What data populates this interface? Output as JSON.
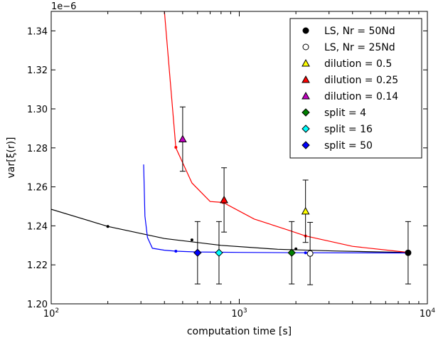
{
  "chart_data": {
    "type": "scatter",
    "title": "",
    "xlabel": "computation time [s]",
    "ylabel": "var[ξ(r)]",
    "y_multiplier": "1e−6",
    "x_scale": "log",
    "xlim": [
      100,
      10000
    ],
    "ylim": [
      1.2,
      1.35
    ],
    "x_ticks": [
      {
        "value": 100,
        "base": "10",
        "exp": "2"
      },
      {
        "value": 1000,
        "base": "10",
        "exp": "3"
      },
      {
        "value": 10000,
        "base": "10",
        "exp": "4"
      }
    ],
    "y_ticks": [
      1.2,
      1.22,
      1.24,
      1.26,
      1.28,
      1.3,
      1.32,
      1.34
    ],
    "legend_position": "top-right",
    "curves": [
      {
        "color": "#000000",
        "x": [
          100,
          200,
          400,
          800,
          1600,
          3200,
          8000
        ],
        "y": [
          1.2485,
          1.2397,
          1.2335,
          1.23,
          1.228,
          1.2271,
          1.2263
        ]
      },
      {
        "color": "#ff0000",
        "x": [
          400,
          460,
          560,
          700,
          820,
          1200,
          1800,
          2250,
          4000,
          8000
        ],
        "y": [
          1.35,
          1.28,
          1.262,
          1.2525,
          1.252,
          1.2435,
          1.238,
          1.2348,
          1.2295,
          1.2263
        ]
      },
      {
        "color": "#0000ff",
        "x": [
          310,
          315,
          325,
          345,
          400,
          460,
          600,
          1000,
          2250,
          8000
        ],
        "y": [
          1.2715,
          1.245,
          1.234,
          1.2285,
          1.2275,
          1.227,
          1.2266,
          1.2264,
          1.2262,
          1.2261
        ]
      }
    ],
    "small_dots": [
      {
        "color": "#000000",
        "x": [
          200,
          560,
          2000
        ],
        "y": [
          1.2397,
          1.2328,
          1.2282
        ]
      },
      {
        "color": "#ff0000",
        "x": [
          460,
          820,
          2250
        ],
        "y": [
          1.2803,
          1.252,
          1.2348
        ]
      },
      {
        "color": "#0000ff",
        "x": [
          460,
          2250
        ],
        "y": [
          1.227,
          1.2262
        ]
      }
    ],
    "series": [
      {
        "name": "LS, Nr = 50Nd",
        "marker": "circle",
        "color": "#000000",
        "points": [
          {
            "x": 7900,
            "y": 1.2262,
            "err": 0.016
          }
        ]
      },
      {
        "name": "LS, Nr = 25Nd",
        "marker": "circle",
        "color": "#ffffff",
        "points": [
          {
            "x": 2380,
            "y": 1.2258,
            "err": 0.016
          }
        ]
      },
      {
        "name": "dilution = 0.5",
        "marker": "triangle",
        "color": "#ffff00",
        "points": [
          {
            "x": 2250,
            "y": 1.2475,
            "err": 0.016
          }
        ]
      },
      {
        "name": "dilution = 0.25",
        "marker": "triangle",
        "color": "#ff0000",
        "points": [
          {
            "x": 830,
            "y": 1.2533,
            "err": 0.0165
          }
        ]
      },
      {
        "name": "dilution = 0.14",
        "marker": "triangle",
        "color": "#bf00bf",
        "points": [
          {
            "x": 500,
            "y": 1.2845,
            "err": 0.0165
          }
        ]
      },
      {
        "name": "split = 4",
        "marker": "diamond",
        "color": "#008000",
        "points": [
          {
            "x": 1900,
            "y": 1.2262,
            "err": 0.016
          }
        ]
      },
      {
        "name": "split = 16",
        "marker": "diamond",
        "color": "#00ffff",
        "points": [
          {
            "x": 780,
            "y": 1.2262,
            "err": 0.016
          }
        ]
      },
      {
        "name": "split = 50",
        "marker": "diamond",
        "color": "#0000ff",
        "points": [
          {
            "x": 600,
            "y": 1.2262,
            "err": 0.016
          }
        ]
      }
    ]
  }
}
